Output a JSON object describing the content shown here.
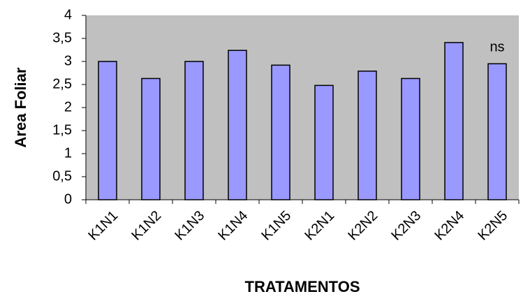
{
  "chart_data": {
    "type": "bar",
    "y_label": "Area Foliar",
    "x_label": "TRATAMENTOS",
    "annotation": "ns",
    "categories": [
      "K1N1",
      "K1N2",
      "K1N3",
      "K1N4",
      "K1N5",
      "K2N1",
      "K2N2",
      "K2N3",
      "K2N4",
      "K2N5"
    ],
    "values": [
      3.0,
      2.63,
      3.0,
      3.24,
      2.92,
      2.48,
      2.79,
      2.63,
      3.41,
      2.95
    ],
    "color": "#9999ff",
    "plot_background": "#c0c0c0",
    "ylim": [
      0,
      4
    ],
    "yticks": [
      0,
      {
        "value": 0.5,
        "label": "0,5"
      },
      1,
      {
        "value": 1.5,
        "label": "1,5"
      },
      2,
      {
        "value": 2.5,
        "label": "2,5"
      },
      3,
      {
        "value": 3.5,
        "label": "3,5"
      },
      4
    ],
    "grid": false
  }
}
